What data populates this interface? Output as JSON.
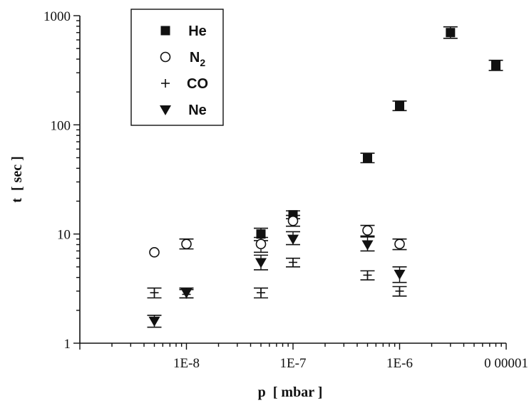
{
  "chart_data": {
    "type": "scatter",
    "xlabel": "p  [ mbar ]",
    "ylabel": "t  [ sec ]",
    "x_scale": "log",
    "y_scale": "log",
    "xlim": [
      1e-09,
      1e-05
    ],
    "ylim": [
      1,
      1000
    ],
    "x_ticks": [
      {
        "value": 1e-08,
        "label": "1E-8"
      },
      {
        "value": 1e-07,
        "label": "1E-7"
      },
      {
        "value": 1e-06,
        "label": "1E-6"
      },
      {
        "value": 1e-05,
        "label": "0 00001"
      }
    ],
    "y_ticks": [
      {
        "value": 1,
        "label": "1"
      },
      {
        "value": 10,
        "label": "10"
      },
      {
        "value": 100,
        "label": "100"
      },
      {
        "value": 1000,
        "label": "1000"
      }
    ],
    "legend_position": "top-left",
    "series": [
      {
        "name": "He",
        "marker": "filled-square",
        "points": [
          {
            "x": 5e-08,
            "y": 10,
            "err": [
              8.7,
              11.3
            ]
          },
          {
            "x": 1e-07,
            "y": 15,
            "err": [
              13.8,
              16.3
            ]
          },
          {
            "x": 5e-07,
            "y": 50,
            "err": [
              45,
              55
            ]
          },
          {
            "x": 1e-06,
            "y": 150,
            "err": [
              135,
              165
            ]
          },
          {
            "x": 3e-06,
            "y": 700,
            "err": [
              620,
              790
            ]
          },
          {
            "x": 8e-06,
            "y": 350,
            "err": [
              315,
              390
            ]
          }
        ]
      },
      {
        "name": "N2",
        "marker": "open-circle",
        "points": [
          {
            "x": 5e-09,
            "y": 6.8
          },
          {
            "x": 1e-08,
            "y": 8.1,
            "err": [
              7.3,
              9.0
            ]
          },
          {
            "x": 5e-08,
            "y": 8.1,
            "err": [
              6.8,
              9.3
            ]
          },
          {
            "x": 1e-07,
            "y": 13.2,
            "err": [
              11.8,
              14.8
            ]
          },
          {
            "x": 5e-07,
            "y": 10.8,
            "err": [
              9.6,
              12.0
            ]
          },
          {
            "x": 1e-06,
            "y": 8.1,
            "err": [
              7.2,
              9.0
            ]
          }
        ]
      },
      {
        "name": "CO",
        "marker": "plus",
        "points": [
          {
            "x": 5e-09,
            "y": 2.9,
            "err": [
              2.6,
              3.2
            ]
          },
          {
            "x": 1e-08,
            "y": 2.8,
            "err": [
              2.6,
              3.1
            ]
          },
          {
            "x": 5e-08,
            "y": 2.9,
            "err": [
              2.6,
              3.2
            ]
          },
          {
            "x": 1e-07,
            "y": 5.5,
            "err": [
              5.0,
              6.0
            ]
          },
          {
            "x": 5e-07,
            "y": 4.2,
            "err": [
              3.8,
              4.6
            ]
          },
          {
            "x": 1e-06,
            "y": 3.0,
            "err": [
              2.7,
              3.3
            ]
          }
        ]
      },
      {
        "name": "Ne",
        "marker": "filled-triangle-down",
        "points": [
          {
            "x": 5e-09,
            "y": 1.6,
            "err": [
              1.4,
              1.8
            ]
          },
          {
            "x": 1e-08,
            "y": 2.9,
            "err": [
              2.6,
              3.2
            ]
          },
          {
            "x": 5e-08,
            "y": 5.5,
            "err": [
              4.7,
              6.4
            ]
          },
          {
            "x": 1e-07,
            "y": 9.0,
            "err": [
              8.0,
              10.5
            ]
          },
          {
            "x": 5e-07,
            "y": 8.0,
            "err": [
              7.0,
              9.4
            ]
          },
          {
            "x": 1e-06,
            "y": 4.3,
            "err": [
              3.6,
              5.0
            ]
          }
        ]
      }
    ],
    "legend": [
      {
        "label": "He",
        "marker": "filled-square"
      },
      {
        "label": "N",
        "subscript": "2",
        "marker": "open-circle"
      },
      {
        "label": "CO",
        "marker": "plus"
      },
      {
        "label": "Ne",
        "marker": "filled-triangle-down"
      }
    ]
  }
}
